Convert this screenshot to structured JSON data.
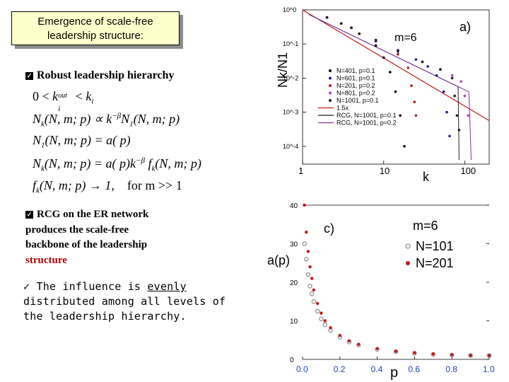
{
  "title_box": {
    "line1": "Emergence of scale-free",
    "line2": "leadership structure:"
  },
  "bullet1": "Robust leadership hierarchy",
  "equations": {
    "eq1": "0 < k",
    "eq1_sup": "out",
    "eq1_sub": "i",
    "eq1_rest": " < k",
    "eq1_sub2": "i",
    "eq2": "N",
    "eq2_sub": "k",
    "eq2_rest": "(N, m; p) ∝ k",
    "eq2_sup": "−β",
    "eq2_tail": "N",
    "eq2_tail_sub": "1",
    "eq2_tail_rest": "(N, m; p)",
    "eq3": "N",
    "eq3_sub": "1",
    "eq3_rest": "(N, m; p) = a( p)",
    "eq4": "N",
    "eq4_sub": "k",
    "eq4_rest": "(N, m; p) = a( p)k",
    "eq4_sup": "−β",
    "eq4_f": " f",
    "eq4_f_sub": "k",
    "eq4_f_rest": "(N, m; p)",
    "eq5": "f",
    "eq5_sub": "k",
    "eq5_rest": "(N, m; p) → 1,",
    "eq5_cond": "for m >> 1"
  },
  "bullet2": {
    "line1": "RCG on the ER network",
    "line2": "produces the scale-free",
    "line3": "backbone of the leadership",
    "line4": "structure"
  },
  "influence": {
    "check": "✓",
    "part1": "The influence is ",
    "underlined": "evenly",
    "part2": " distributed among all levels of the leadership hierarchy."
  },
  "chart_data": [
    {
      "type": "scatter",
      "panel_label": "a)",
      "annotation": "m=6",
      "xlabel": "k",
      "ylabel": "Nk/N1",
      "xscale": "log",
      "yscale": "log",
      "xlim": [
        1,
        200
      ],
      "ylim": [
        3e-05,
        1
      ],
      "xticks": [
        "1",
        "10",
        "100"
      ],
      "yticks": [
        "10^0",
        "10^-1",
        "10^-2",
        "10^-3",
        "10^-4"
      ],
      "legend_position": "lower-left",
      "series": [
        {
          "name": "N=401, p=0.1",
          "color": "#000000",
          "x": [
            2,
            3,
            5,
            8,
            10,
            12,
            14,
            16,
            18
          ],
          "y": [
            0.6,
            0.4,
            0.2,
            0.09,
            0.04,
            0.015,
            0.004,
            0.0008,
            0.0001
          ]
        },
        {
          "name": "N=601, p=0.1",
          "color": "#1a1aa0",
          "x": [
            2,
            4,
            8,
            15,
            25,
            35,
            45,
            55,
            60,
            65
          ],
          "y": [
            0.6,
            0.3,
            0.12,
            0.06,
            0.035,
            0.022,
            0.012,
            0.004,
            0.001,
            0.0002
          ]
        },
        {
          "name": "N=201, p=0.2",
          "color": "#c01818",
          "x": [
            2,
            4,
            8,
            15,
            20,
            22,
            24,
            25
          ],
          "y": [
            0.6,
            0.3,
            0.13,
            0.05,
            0.02,
            0.006,
            0.002,
            0.0008
          ]
        },
        {
          "name": "N=801, p=0.2",
          "color": "#c040c0",
          "x": [
            2,
            4,
            8,
            15,
            30,
            50,
            70,
            90,
            100,
            110
          ],
          "y": [
            0.6,
            0.3,
            0.13,
            0.065,
            0.03,
            0.018,
            0.012,
            0.008,
            0.003,
            0.0008
          ]
        },
        {
          "name": "N=1001, p=0.1",
          "color": "#202020",
          "x": [
            2,
            4,
            8,
            15,
            30,
            50,
            70,
            75,
            80,
            85
          ],
          "y": [
            0.6,
            0.3,
            0.13,
            0.065,
            0.03,
            0.018,
            0.01,
            0.003,
            0.0008,
            0.0003
          ]
        }
      ],
      "lines": [
        {
          "name": "1.5x",
          "color": "#c01818",
          "slope": -1.5
        },
        {
          "name": "RCG, N=1001, p=0.1",
          "color": "#202020"
        },
        {
          "name": "RCG, N=1001, p=0.2",
          "color": "#8030a0"
        }
      ]
    },
    {
      "type": "scatter",
      "panel_label": "c)",
      "annotation": "m=6",
      "xlabel": "p",
      "ylabel": "a(p)",
      "xlim": [
        0,
        1
      ],
      "ylim": [
        0,
        40
      ],
      "xticks": [
        "0.0",
        "0.2",
        "0.4",
        "0.6",
        "0.8",
        "1.0"
      ],
      "yticks": [
        "40",
        "30",
        "20",
        "10",
        "0"
      ],
      "legend_position": "top-right",
      "series": [
        {
          "name": "N=101",
          "color": "#888888",
          "x": [
            0.01,
            0.02,
            0.03,
            0.04,
            0.05,
            0.06,
            0.08,
            0.1,
            0.12,
            0.15,
            0.2,
            0.25,
            0.3,
            0.4,
            0.5,
            0.6,
            0.7,
            0.8,
            0.9,
            1.0
          ],
          "y": [
            30,
            26,
            22,
            19,
            17,
            15,
            12.5,
            10.5,
            9,
            7.5,
            5.8,
            4.5,
            3.7,
            2.6,
            2.0,
            1.6,
            1.3,
            1.1,
            1.0,
            1.0
          ]
        },
        {
          "name": "N=201",
          "color": "#c01818",
          "x": [
            0.01,
            0.02,
            0.03,
            0.04,
            0.05,
            0.06,
            0.08,
            0.1,
            0.12,
            0.15,
            0.2,
            0.25,
            0.3,
            0.4,
            0.5,
            0.6,
            0.7,
            0.8,
            0.9,
            1.0
          ],
          "y": [
            40,
            33,
            28,
            24,
            21,
            18,
            14.5,
            12,
            10,
            8.2,
            6.2,
            4.8,
            3.9,
            2.8,
            2.1,
            1.7,
            1.4,
            1.2,
            1.05,
            1.0
          ]
        }
      ]
    }
  ]
}
